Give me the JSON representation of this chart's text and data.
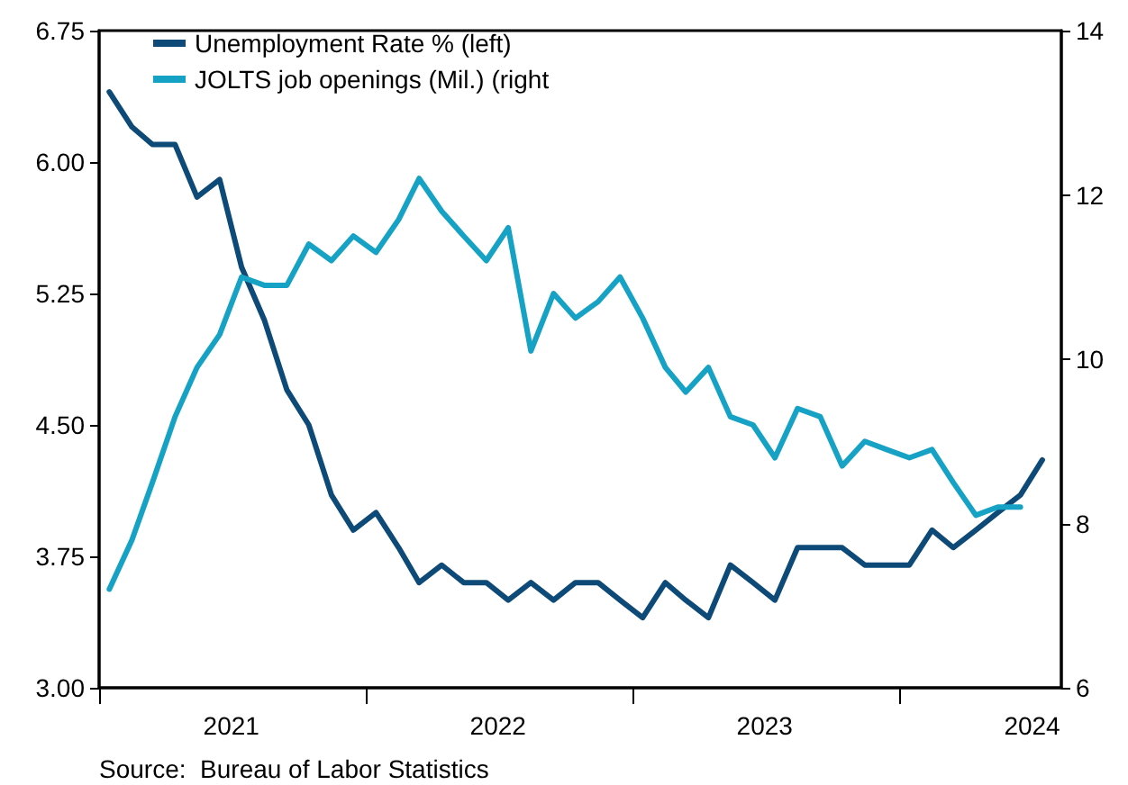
{
  "chart_data": {
    "type": "line",
    "series": [
      {
        "name": "Unemployment Rate % (left)",
        "color": "#0d4a78",
        "x": [
          "2021-01-15",
          "2021-02-15",
          "2021-03-15",
          "2021-04-15",
          "2021-05-15",
          "2021-06-15",
          "2021-07-15",
          "2021-08-15",
          "2021-09-15",
          "2021-10-15",
          "2021-11-15",
          "2021-12-15",
          "2022-01-15",
          "2022-02-15",
          "2022-03-15",
          "2022-04-15",
          "2022-05-15",
          "2022-06-15",
          "2022-07-15",
          "2022-08-15",
          "2022-09-15",
          "2022-10-15",
          "2022-11-15",
          "2022-12-15",
          "2023-01-15",
          "2023-02-15",
          "2023-03-15",
          "2023-04-15",
          "2023-05-15",
          "2023-06-15",
          "2023-07-15",
          "2023-08-15",
          "2023-09-15",
          "2023-10-15",
          "2023-11-15",
          "2023-12-15",
          "2024-01-15",
          "2024-02-15",
          "2024-03-15",
          "2024-04-15",
          "2024-05-15",
          "2024-06-15",
          "2024-07-15"
        ],
        "values": [
          6.4,
          6.2,
          6.1,
          6.1,
          5.8,
          5.9,
          5.4,
          5.1,
          4.7,
          4.5,
          4.1,
          3.9,
          4.0,
          3.8,
          3.6,
          3.7,
          3.6,
          3.6,
          3.5,
          3.6,
          3.5,
          3.6,
          3.6,
          3.5,
          3.4,
          3.6,
          3.5,
          3.4,
          3.7,
          3.6,
          3.5,
          3.8,
          3.8,
          3.8,
          3.7,
          3.7,
          3.7,
          3.9,
          3.8,
          3.9,
          4.0,
          4.1,
          4.3
        ]
      },
      {
        "name": "JOLTS job openings (Mil.) (right",
        "color": "#16a2c4",
        "axis": "y2",
        "x": [
          "2021-01-15",
          "2021-02-15",
          "2021-03-15",
          "2021-04-15",
          "2021-05-15",
          "2021-06-15",
          "2021-07-15",
          "2021-08-15",
          "2021-09-15",
          "2021-10-15",
          "2021-11-15",
          "2021-12-15",
          "2022-01-15",
          "2022-02-15",
          "2022-03-15",
          "2022-04-15",
          "2022-05-15",
          "2022-06-15",
          "2022-07-15",
          "2022-08-15",
          "2022-09-15",
          "2022-10-15",
          "2022-11-15",
          "2022-12-15",
          "2023-01-15",
          "2023-02-15",
          "2023-03-15",
          "2023-04-15",
          "2023-05-15",
          "2023-06-15",
          "2023-07-15",
          "2023-08-15",
          "2023-09-15",
          "2023-10-15",
          "2023-11-15",
          "2023-12-15",
          "2024-01-15",
          "2024-02-15",
          "2024-03-15",
          "2024-04-15",
          "2024-05-15",
          "2024-06-15"
        ],
        "values": [
          7.2,
          7.8,
          8.5,
          9.3,
          9.9,
          10.3,
          11.0,
          10.9,
          10.9,
          11.4,
          11.2,
          11.5,
          11.3,
          11.7,
          12.2,
          11.8,
          11.5,
          11.2,
          11.6,
          10.1,
          10.8,
          10.5,
          10.7,
          11.0,
          10.5,
          9.9,
          9.6,
          9.9,
          9.3,
          9.2,
          8.8,
          9.4,
          9.3,
          8.7,
          9.0,
          8.9,
          8.8,
          8.9,
          8.5,
          8.1,
          8.2,
          8.2
        ]
      }
    ],
    "xlim": [
      "2021-01-01",
      "2024-08-10"
    ],
    "xticks": [
      {
        "value": "2021-01-01",
        "label": null
      },
      {
        "value": "2021-07-01",
        "label": "2021"
      },
      {
        "value": "2022-01-01",
        "label": null
      },
      {
        "value": "2022-07-01",
        "label": "2022"
      },
      {
        "value": "2023-01-01",
        "label": null
      },
      {
        "value": "2023-07-01",
        "label": "2023"
      },
      {
        "value": "2024-01-01",
        "label": null
      },
      {
        "value": "2024-07-01",
        "label": "2024"
      }
    ],
    "ylim": [
      3.0,
      6.75
    ],
    "yticks": [
      {
        "value": 3,
        "label": "3.00"
      },
      {
        "value": 3.75,
        "label": "3.75"
      },
      {
        "value": 4.5,
        "label": "4.50"
      },
      {
        "value": 5.25,
        "label": "5.25"
      },
      {
        "value": 6,
        "label": "6.00"
      },
      {
        "value": 6.75,
        "label": "6.75"
      }
    ],
    "y2lim": [
      6,
      14
    ],
    "y2ticks": [
      6,
      8,
      10,
      12,
      14
    ],
    "annotations": [
      "Source:  Bureau of Labor Statistics"
    ],
    "legend": "top left",
    "grid": false,
    "marker": "none",
    "line_style": "solid"
  }
}
